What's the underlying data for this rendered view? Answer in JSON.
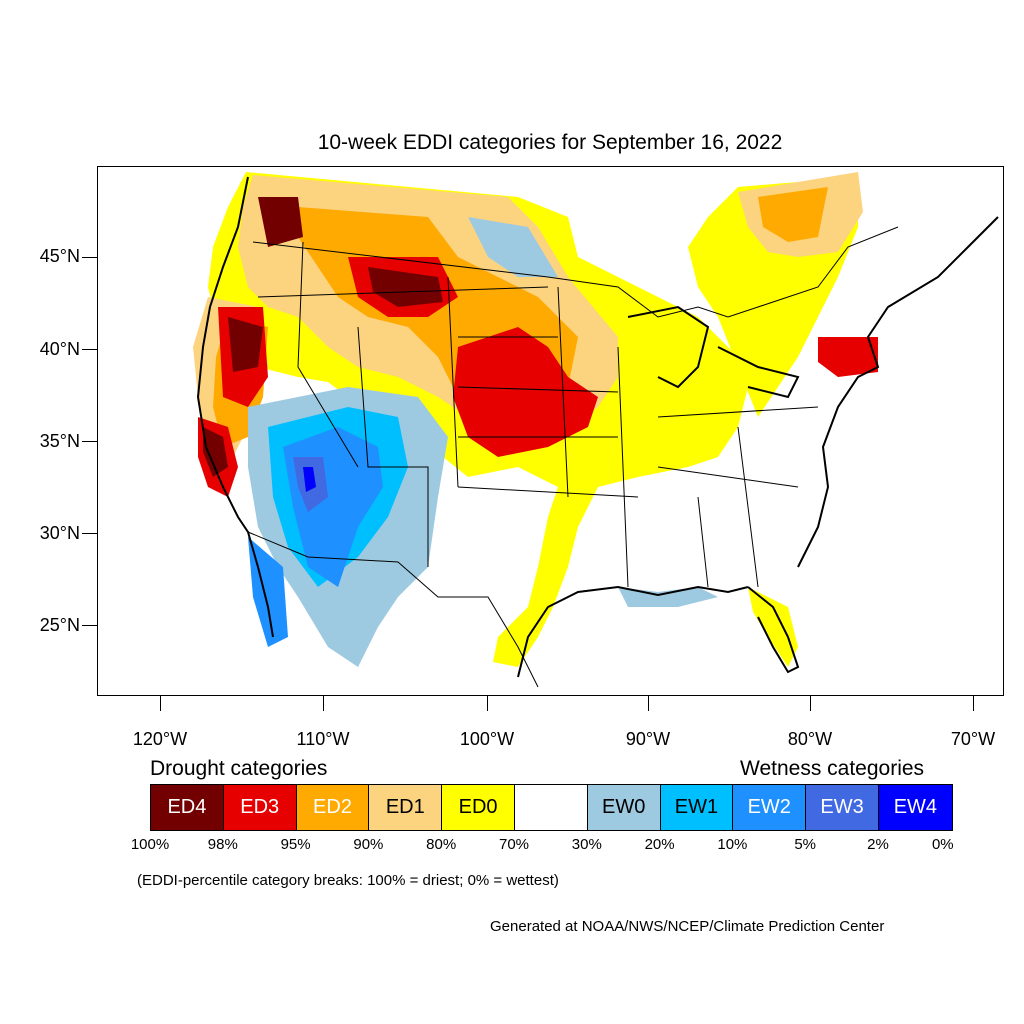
{
  "title": "10-week EDDI categories for September 16, 2022",
  "lat_labels": [
    "45°N",
    "40°N",
    "35°N",
    "30°N",
    "25°N"
  ],
  "lon_labels": [
    "120°W",
    "110°W",
    "100°W",
    "90°W",
    "80°W",
    "70°W"
  ],
  "legend": {
    "drought_heading": "Drought categories",
    "wetness_heading": "Wetness categories",
    "categories": [
      {
        "label": "ED4",
        "color": "#730000",
        "text_color": "#ffffff"
      },
      {
        "label": "ED3",
        "color": "#e60000",
        "text_color": "#ffffff"
      },
      {
        "label": "ED2",
        "color": "#ffaa00",
        "text_color": "#ffffff"
      },
      {
        "label": "ED1",
        "color": "#fcd37f",
        "text_color": "#000000"
      },
      {
        "label": "ED0",
        "color": "#ffff00",
        "text_color": "#000000"
      },
      {
        "label": "",
        "color": "#ffffff",
        "text_color": "#000000"
      },
      {
        "label": "EW0",
        "color": "#9ecae1",
        "text_color": "#000000"
      },
      {
        "label": "EW1",
        "color": "#00bfff",
        "text_color": "#000000"
      },
      {
        "label": "EW2",
        "color": "#1e90ff",
        "text_color": "#ffffff"
      },
      {
        "label": "EW3",
        "color": "#4169e1",
        "text_color": "#ffffff"
      },
      {
        "label": "EW4",
        "color": "#0000ff",
        "text_color": "#ffffff"
      }
    ],
    "breaks": [
      "100%",
      "98%",
      "95%",
      "90%",
      "80%",
      "70%",
      "30%",
      "20%",
      "10%",
      "5%",
      "2%",
      "0%"
    ]
  },
  "note": "(EDDI-percentile category breaks: 100% = driest; 0% = wettest)",
  "credit": "Generated at NOAA/NWS/NCEP/Climate Prediction Center"
}
